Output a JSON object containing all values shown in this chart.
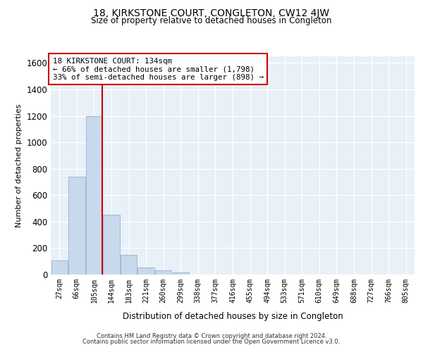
{
  "title": "18, KIRKSTONE COURT, CONGLETON, CW12 4JW",
  "subtitle": "Size of property relative to detached houses in Congleton",
  "xlabel": "Distribution of detached houses by size in Congleton",
  "ylabel": "Number of detached properties",
  "bar_color": "#c8d9ec",
  "bar_edge_color": "#a0b8d8",
  "background_color": "#e8f0f8",
  "grid_color": "#ffffff",
  "categories": [
    "27sqm",
    "66sqm",
    "105sqm",
    "144sqm",
    "183sqm",
    "221sqm",
    "260sqm",
    "299sqm",
    "338sqm",
    "377sqm",
    "416sqm",
    "455sqm",
    "494sqm",
    "533sqm",
    "571sqm",
    "610sqm",
    "649sqm",
    "688sqm",
    "727sqm",
    "766sqm",
    "805sqm"
  ],
  "values": [
    105,
    740,
    1200,
    450,
    148,
    52,
    30,
    18,
    0,
    0,
    0,
    0,
    0,
    0,
    0,
    0,
    0,
    0,
    0,
    0,
    0
  ],
  "ylim": [
    0,
    1650
  ],
  "yticks": [
    0,
    200,
    400,
    600,
    800,
    1000,
    1200,
    1400,
    1600
  ],
  "annotation_text": "18 KIRKSTONE COURT: 134sqm\n← 66% of detached houses are smaller (1,798)\n33% of semi-detached houses are larger (898) →",
  "annotation_box_color": "#ffffff",
  "annotation_box_edge": "#cc0000",
  "property_line_color": "#cc0000",
  "footer_line1": "Contains HM Land Registry data © Crown copyright and database right 2024.",
  "footer_line2": "Contains public sector information licensed under the Open Government Licence v3.0."
}
